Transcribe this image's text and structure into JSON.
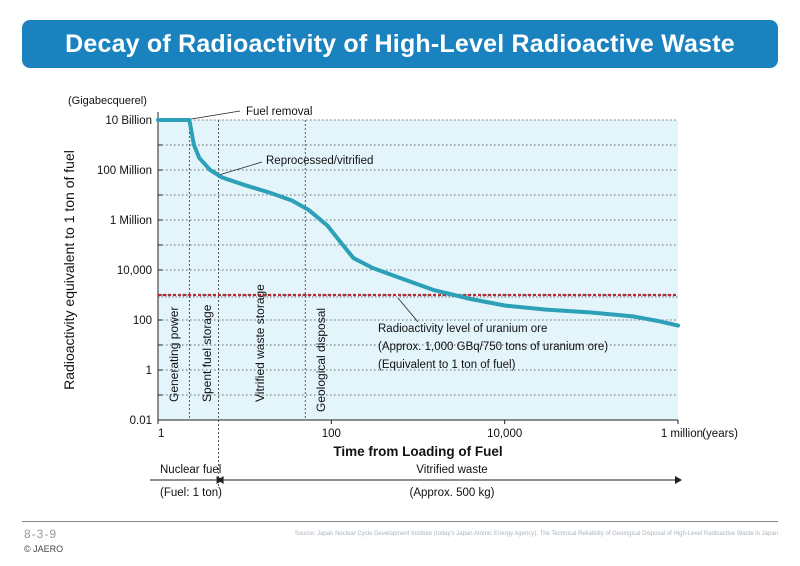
{
  "title": "Decay of Radioactivity of High-Level Radioactive Waste",
  "chart_data": {
    "type": "line",
    "title": "Decay of Radioactivity of High-Level Radioactive Waste",
    "xlabel": "Time from Loading of Fuel",
    "x_unit": "(years)",
    "ylabel": "Radioactivity equivalent to 1 ton of fuel",
    "y_unit": "(Gigabecquerel)",
    "x_scale": "log",
    "y_scale": "log",
    "xlim": [
      1,
      1000000
    ],
    "ylim": [
      0.01,
      10000000000
    ],
    "x_ticks": [
      {
        "value": 1,
        "label": "1"
      },
      {
        "value": 100,
        "label": "100"
      },
      {
        "value": 10000,
        "label": "10,000"
      },
      {
        "value": 1000000,
        "label": "1 million"
      }
    ],
    "y_ticks": [
      {
        "value": 10000000000,
        "label": "10 Billion"
      },
      {
        "value": 100000000,
        "label": "100 Million"
      },
      {
        "value": 1000000,
        "label": "1 Million"
      },
      {
        "value": 10000,
        "label": "10,000"
      },
      {
        "value": 100,
        "label": "100"
      },
      {
        "value": 1,
        "label": "1"
      },
      {
        "value": 0.01,
        "label": "0.01"
      }
    ],
    "grid": true,
    "series": [
      {
        "name": "",
        "color": "#2ba0b7",
        "points": [
          [
            1,
            10000000000
          ],
          [
            2.3,
            10000000000
          ],
          [
            2.45,
            3000000000
          ],
          [
            2.6,
            1000000000
          ],
          [
            3,
            300000000
          ],
          [
            4,
            100000000
          ],
          [
            5.5,
            50000000
          ],
          [
            10,
            25000000
          ],
          [
            20,
            12000000
          ],
          [
            35,
            6000000
          ],
          [
            55,
            2500000
          ],
          [
            90,
            600000
          ],
          [
            130,
            120000
          ],
          [
            180,
            30000
          ],
          [
            300,
            12000
          ],
          [
            600,
            5000
          ],
          [
            1500,
            1600
          ],
          [
            4000,
            700
          ],
          [
            10000,
            380
          ],
          [
            30000,
            260
          ],
          [
            100000,
            200
          ],
          [
            300000,
            140
          ],
          [
            600000,
            90
          ],
          [
            1000000,
            60
          ]
        ]
      }
    ],
    "reference_line": {
      "label_lines": [
        "Radioactivity level of uranium ore",
        "(Approx. 1,000 GBq/750 tons of uranium ore)",
        "(Equivalent to 1 ton of fuel)"
      ],
      "value": 1000,
      "color": "#c0272d"
    },
    "phases": [
      {
        "label": "Generating power",
        "x_start": 1,
        "x_end": 2.3
      },
      {
        "label": "Spent fuel storage",
        "x_start": 2.3,
        "x_end": 5
      },
      {
        "label": "Vitrified waste storage",
        "x_start": 5,
        "x_end": 50
      },
      {
        "label": "Geological disposal",
        "x_start": 50,
        "x_end": 1000000
      }
    ],
    "annotations": [
      {
        "label": "Fuel removal",
        "x": 2.3,
        "y": 10000000000
      },
      {
        "label": "Reprocessed/vitrified",
        "x": 5,
        "y": 55000000
      }
    ],
    "bottom_bar": {
      "left_top": "Nuclear fuel",
      "left_bottom": "(Fuel: 1 ton)",
      "right_top": "Vitrified waste",
      "right_bottom": "(Approx. 500 kg)",
      "split_x": 5
    },
    "plot_background": "#e3f4fb"
  },
  "footer": {
    "figure_number": "8-3-9",
    "copyright": "© JAERO",
    "source": "Source: Japan Nuclear Cycle Development Institute (today's Japan Atomic Energy Agency), The Technical Reliability of Geological Disposal of High-Level Radioactive Waste in Japan"
  }
}
